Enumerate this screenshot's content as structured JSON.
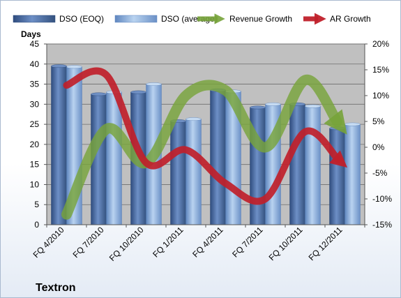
{
  "chart_data": {
    "type": "bar+line",
    "company": "Textron",
    "y_left_label": "Days",
    "y_left_lim": [
      0,
      45
    ],
    "y_left_ticks": [
      "0",
      "5",
      "10",
      "15",
      "20",
      "25",
      "30",
      "35",
      "40",
      "45"
    ],
    "y_right_lim": [
      -15,
      20
    ],
    "y_right_ticks": [
      "-15%",
      "-10%",
      "-5%",
      "0%",
      "5%",
      "10%",
      "15%",
      "20%"
    ],
    "categories": [
      "FQ 4/2010",
      "FQ 7/2010",
      "FQ 10/2010",
      "FQ 1/2011",
      "FQ 4/2011",
      "FQ 7/2011",
      "FQ 10/2011",
      "FQ 12/2011"
    ],
    "grid": true,
    "legend_position": "top",
    "bar_series": [
      {
        "name": "DSO (EOQ)",
        "color": "#4f6fa3",
        "values": [
          39.5,
          32.5,
          33,
          25.8,
          33.5,
          29.2,
          30,
          24
        ]
      },
      {
        "name": "DSO (average)",
        "color": "#8db3e2",
        "values": [
          39.3,
          33,
          35,
          26.3,
          33.2,
          30,
          29.5,
          25
        ]
      }
    ],
    "line_series": [
      {
        "name": "Revenue Growth",
        "color": "#77a33a",
        "values": [
          -13,
          3.5,
          -3,
          10,
          11,
          0,
          13,
          3
        ]
      },
      {
        "name": "AR Growth",
        "color": "#c0202a",
        "values": [
          12,
          14,
          -3,
          -0.5,
          -7,
          -10,
          3,
          -3.5
        ]
      }
    ]
  }
}
